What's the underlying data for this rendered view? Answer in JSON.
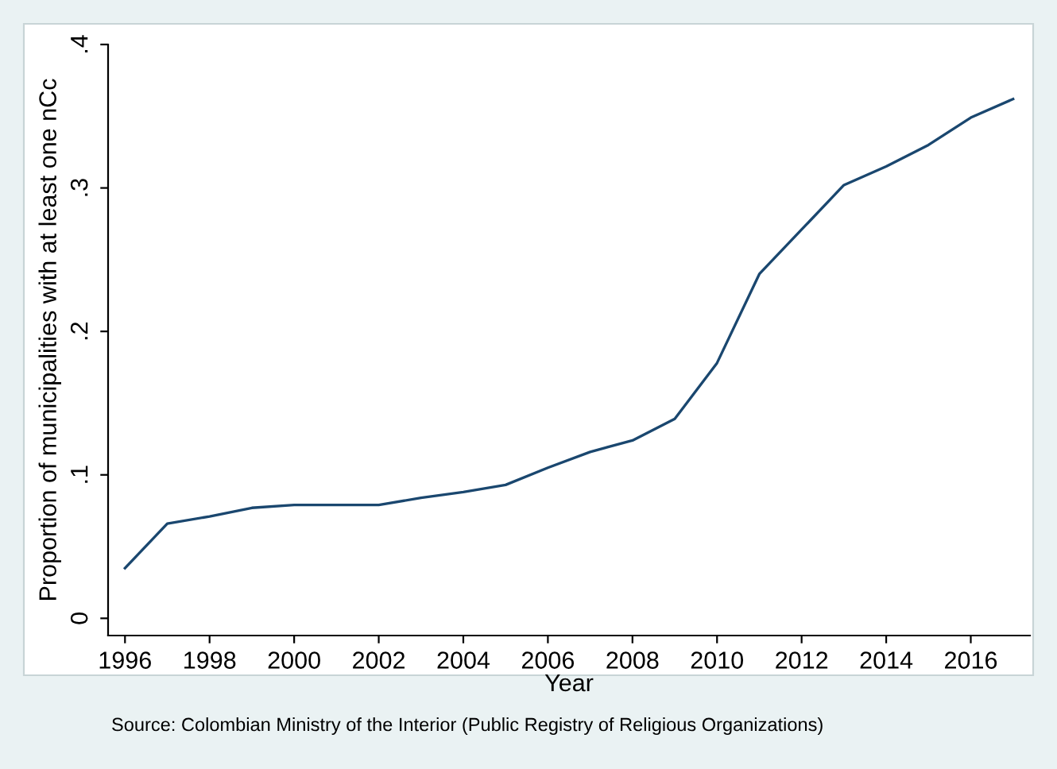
{
  "chart_data": {
    "type": "line",
    "xlabel": "Year",
    "ylabel": "Proportion of municipalities with at least one nCc",
    "x": [
      1996,
      1997,
      1998,
      1999,
      2000,
      2001,
      2002,
      2003,
      2004,
      2005,
      2006,
      2007,
      2008,
      2009,
      2010,
      2011,
      2012,
      2013,
      2014,
      2015,
      2016,
      2017
    ],
    "series": [
      {
        "color": "#1a476f",
        "values": [
          0.035,
          0.066,
          0.071,
          0.077,
          0.079,
          0.079,
          0.079,
          0.084,
          0.088,
          0.093,
          0.105,
          0.116,
          0.124,
          0.139,
          0.178,
          0.24,
          0.271,
          0.302,
          0.315,
          0.33,
          0.349,
          0.362
        ]
      }
    ],
    "xlim": [
      1995.6,
      2017.4
    ],
    "ylim": [
      -0.012,
      0.4
    ],
    "xticks": [
      1996,
      1998,
      2000,
      2002,
      2004,
      2006,
      2008,
      2010,
      2012,
      2014,
      2016
    ],
    "yticks": [
      0,
      {
        "value": 0.1,
        "label": ".1"
      },
      {
        "value": 0.2,
        "label": ".2"
      },
      {
        "value": 0.3,
        "label": ".3"
      },
      {
        "value": 0.4,
        "label": ".4"
      }
    ],
    "grid": false,
    "legend": false,
    "marker": "none",
    "line_style": "solid",
    "annotations": [
      "Source: Colombian Ministry of the Interior (Public Registry of Religious Organizations)"
    ]
  }
}
